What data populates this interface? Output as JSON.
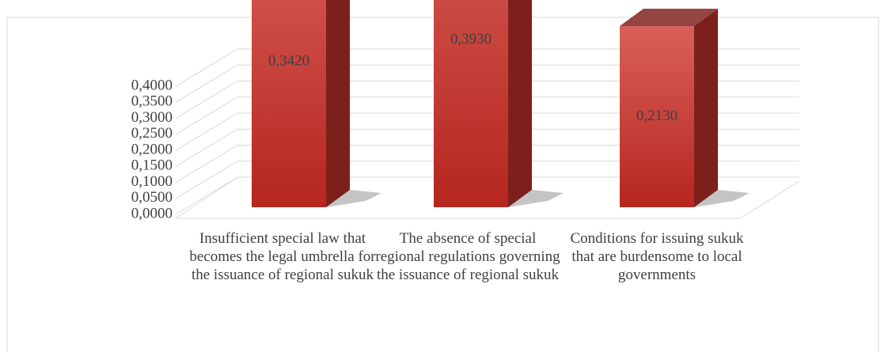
{
  "chart_data": {
    "type": "bar3d",
    "categories": [
      "Insufficient special law that becomes the legal umbrella for the issuance of regional sukuk",
      "The absence of special regional regulations governing the issuance of regional sukuk",
      "Conditions for issuing sukuk that are burdensome to local governments"
    ],
    "values": [
      0.342,
      0.393,
      0.213
    ],
    "value_labels": [
      "0,3420",
      "0,3930",
      "0,2130"
    ],
    "color": "#c0392b",
    "ylim": [
      0,
      0.4
    ],
    "yticks": [
      {
        "value": 0,
        "label": "0,0000"
      },
      {
        "value": 0.05,
        "label": "0,0500"
      },
      {
        "value": 0.1,
        "label": "0,1000"
      },
      {
        "value": 0.15,
        "label": "0,1500"
      },
      {
        "value": 0.2,
        "label": "0,2000"
      },
      {
        "value": 0.25,
        "label": "0,2500"
      },
      {
        "value": 0.3,
        "label": "0,3000"
      },
      {
        "value": 0.35,
        "label": "0,3500"
      },
      {
        "value": 0.4,
        "label": "0,4000"
      }
    ],
    "grid": true
  }
}
